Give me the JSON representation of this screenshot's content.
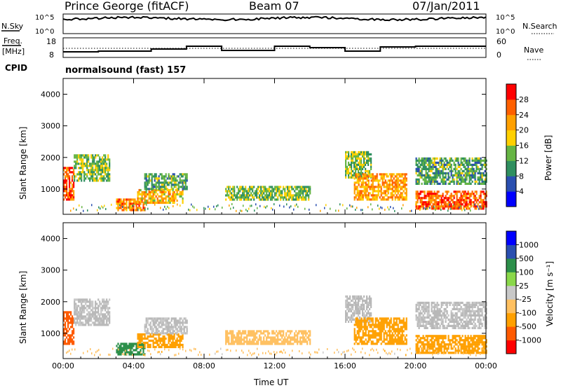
{
  "header": {
    "station": "Prince George (fitACF)",
    "beam": "Beam 07",
    "date": "07/Jan/2011"
  },
  "nsky_panel": {
    "left_label": "N.Sky",
    "right_label": "N.Search",
    "left_ticks": [
      "10^5",
      "10^0"
    ],
    "right_ticks": [
      "10^5",
      "10^0"
    ]
  },
  "freq_panel": {
    "left_label_line1": "Freq.",
    "left_label_line2": "[MHz]",
    "right_label": "Nave",
    "left_ticks": [
      "18",
      "8"
    ],
    "right_ticks": [
      "60",
      "0"
    ]
  },
  "cpid": {
    "label": "CPID",
    "value": "normalsound (fast) 157"
  },
  "colors": {
    "power_scale": [
      "#0000ff",
      "#2a4fb0",
      "#2f8f5f",
      "#66b544",
      "#ffd000",
      "#ffa000",
      "#ff6000",
      "#ff0000"
    ],
    "velocity_scale": [
      "#ff0000",
      "#ff5a00",
      "#ffa000",
      "#ffc060",
      "#c8c8c8",
      "#8ad84a",
      "#2c8f4a",
      "#2a4fb0",
      "#0000ff"
    ],
    "ground_scatter": "#b8b8b8"
  },
  "chart_data": [
    {
      "type": "heatmap",
      "name_panel": "power",
      "ylabel": "Slant Range [km]",
      "y_ticks": [
        "1000",
        "2000",
        "3000",
        "4000"
      ],
      "ylim": [
        200,
        4500
      ],
      "x_ticks": [
        "00:00",
        "04:00",
        "08:00",
        "12:00",
        "16:00",
        "20:00",
        "00:00"
      ],
      "xlim_hours": [
        0,
        24
      ],
      "colorbar_label": "Power [dB]",
      "colorbar_ticks": [
        "4",
        "8",
        "12",
        "16",
        "20",
        "24",
        "28"
      ],
      "colorbar_range": [
        0,
        32
      ],
      "regions": [
        {
          "x": [
            0.0,
            0.6
          ],
          "y": [
            700,
            1700
          ],
          "v": 26
        },
        {
          "x": [
            0.6,
            2.6
          ],
          "y": [
            1300,
            2100
          ],
          "v": 14
        },
        {
          "x": [
            3.0,
            4.6
          ],
          "y": [
            350,
            700
          ],
          "v": 24
        },
        {
          "x": [
            4.2,
            6.8
          ],
          "y": [
            600,
            1000
          ],
          "v": 20
        },
        {
          "x": [
            4.6,
            7.0
          ],
          "y": [
            1000,
            1500
          ],
          "v": 12
        },
        {
          "x": [
            9.2,
            14.0
          ],
          "y": [
            700,
            1100
          ],
          "v": 14
        },
        {
          "x": [
            16.0,
            17.5
          ],
          "y": [
            1400,
            2200
          ],
          "v": 14
        },
        {
          "x": [
            16.5,
            19.5
          ],
          "y": [
            700,
            1500
          ],
          "v": 22
        },
        {
          "x": [
            20.0,
            24.0
          ],
          "y": [
            400,
            950
          ],
          "v": 26
        },
        {
          "x": [
            20.0,
            24.0
          ],
          "y": [
            1200,
            2000
          ],
          "v": 12
        }
      ]
    },
    {
      "type": "heatmap",
      "name_panel": "velocity",
      "ylabel": "Slant Range [km]",
      "y_ticks": [
        "1000",
        "2000",
        "3000",
        "4000"
      ],
      "ylim": [
        200,
        4500
      ],
      "x_ticks": [
        "00:00",
        "04:00",
        "08:00",
        "12:00",
        "16:00",
        "20:00",
        "00:00"
      ],
      "xlim_hours": [
        0,
        24
      ],
      "xlabel": "Time UT",
      "colorbar_label": "Velocity [m s⁻¹]",
      "colorbar_ticks": [
        "-1000",
        "-500",
        "-100",
        "-25",
        "25",
        "100",
        "500",
        "1000"
      ],
      "regions": [
        {
          "x": [
            0.0,
            0.6
          ],
          "y": [
            700,
            1700
          ],
          "v": -500
        },
        {
          "x": [
            0.6,
            2.6
          ],
          "y": [
            1300,
            2100
          ],
          "v": 0
        },
        {
          "x": [
            3.0,
            4.6
          ],
          "y": [
            350,
            700
          ],
          "v": 150
        },
        {
          "x": [
            4.2,
            6.8
          ],
          "y": [
            600,
            1000
          ],
          "v": -200
        },
        {
          "x": [
            4.6,
            7.0
          ],
          "y": [
            1000,
            1500
          ],
          "v": 0
        },
        {
          "x": [
            9.2,
            14.0
          ],
          "y": [
            700,
            1100
          ],
          "v": -60
        },
        {
          "x": [
            16.0,
            17.5
          ],
          "y": [
            1400,
            2200
          ],
          "v": 0
        },
        {
          "x": [
            16.5,
            19.5
          ],
          "y": [
            700,
            1500
          ],
          "v": -120
        },
        {
          "x": [
            20.0,
            24.0
          ],
          "y": [
            400,
            950
          ],
          "v": -150
        },
        {
          "x": [
            20.0,
            24.0
          ],
          "y": [
            1200,
            2000
          ],
          "v": 0
        }
      ]
    }
  ]
}
